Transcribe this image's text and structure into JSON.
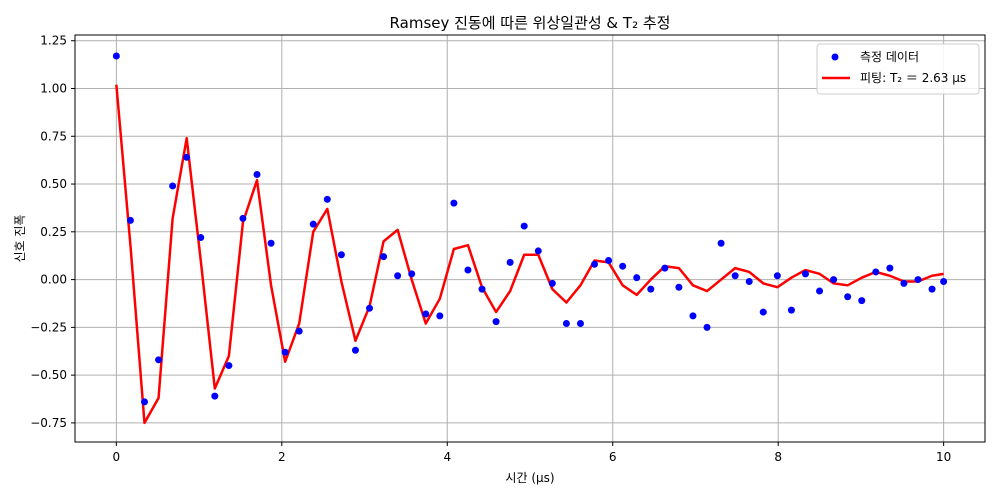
{
  "chart_data": {
    "type": "scatter",
    "title": "Ramsey 진동에 따른 위상일관성 & T₂ 추정",
    "xlabel": "시간 (μs)",
    "ylabel": "신호 진폭",
    "xlim": [
      -0.5,
      10.5
    ],
    "ylim": [
      -0.85,
      1.28
    ],
    "x_ticks": [
      0,
      2,
      4,
      6,
      8,
      10
    ],
    "x_tick_labels": [
      "0",
      "2",
      "4",
      "6",
      "8",
      "10"
    ],
    "y_ticks": [
      -0.75,
      -0.5,
      -0.25,
      0.0,
      0.25,
      0.5,
      0.75,
      1.0,
      1.25
    ],
    "y_tick_labels": [
      "−0.75",
      "−0.50",
      "−0.25",
      "0.00",
      "0.25",
      "0.50",
      "0.75",
      "1.00",
      "1.25"
    ],
    "grid": true,
    "legend_position": "top-right",
    "series": [
      {
        "name": "측정 데이터",
        "kind": "scatter",
        "color": "#0000ff",
        "x": [
          0.0,
          0.17,
          0.34,
          0.51,
          0.68,
          0.85,
          1.02,
          1.19,
          1.36,
          1.53,
          1.7,
          1.87,
          2.04,
          2.21,
          2.38,
          2.55,
          2.72,
          2.89,
          3.06,
          3.23,
          3.4,
          3.57,
          3.74,
          3.91,
          4.08,
          4.25,
          4.42,
          4.59,
          4.76,
          4.93,
          5.1,
          5.27,
          5.44,
          5.61,
          5.78,
          5.95,
          6.12,
          6.29,
          6.46,
          6.63,
          6.8,
          6.97,
          7.14,
          7.31,
          7.48,
          7.65,
          7.82,
          7.99,
          8.16,
          8.33,
          8.5,
          8.67,
          8.84,
          9.01,
          9.18,
          9.35,
          9.52,
          9.69,
          9.86,
          10.0
        ],
        "y": [
          1.17,
          0.31,
          -0.64,
          -0.42,
          0.49,
          0.64,
          0.22,
          -0.61,
          -0.45,
          0.32,
          0.55,
          0.19,
          -0.38,
          -0.27,
          0.29,
          0.42,
          0.13,
          -0.37,
          -0.15,
          0.12,
          0.02,
          0.03,
          -0.18,
          -0.19,
          0.4,
          0.05,
          -0.05,
          -0.22,
          0.09,
          0.28,
          0.15,
          -0.02,
          -0.23,
          -0.23,
          0.08,
          0.1,
          0.07,
          0.01,
          -0.05,
          0.06,
          -0.04,
          -0.19,
          -0.25,
          0.19,
          0.02,
          -0.01,
          -0.17,
          0.02,
          -0.16,
          0.03,
          -0.06,
          0.0,
          -0.09,
          -0.11,
          0.04,
          0.06,
          -0.02,
          0.0,
          -0.05,
          -0.01
        ]
      },
      {
        "name": "피팅: T₂ ＝ 2.63 μs",
        "kind": "line",
        "color": "#ff0000",
        "x": [
          0.0,
          0.17,
          0.34,
          0.51,
          0.68,
          0.85,
          1.02,
          1.19,
          1.36,
          1.53,
          1.7,
          1.87,
          2.04,
          2.21,
          2.38,
          2.55,
          2.72,
          2.89,
          3.06,
          3.23,
          3.4,
          3.57,
          3.74,
          3.91,
          4.08,
          4.25,
          4.42,
          4.59,
          4.76,
          4.93,
          5.1,
          5.27,
          5.44,
          5.61,
          5.78,
          5.95,
          6.12,
          6.29,
          6.46,
          6.63,
          6.8,
          6.97,
          7.14,
          7.31,
          7.48,
          7.65,
          7.82,
          7.99,
          8.16,
          8.33,
          8.5,
          8.67,
          8.84,
          9.01,
          9.18,
          9.35,
          9.52,
          9.69,
          9.86,
          10.0
        ],
        "y": [
          1.02,
          0.18,
          -0.75,
          -0.62,
          0.32,
          0.74,
          0.1,
          -0.57,
          -0.4,
          0.3,
          0.52,
          -0.03,
          -0.43,
          -0.23,
          0.25,
          0.37,
          -0.01,
          -0.32,
          -0.14,
          0.2,
          0.26,
          0.0,
          -0.23,
          -0.1,
          0.16,
          0.18,
          -0.04,
          -0.17,
          -0.06,
          0.13,
          0.13,
          -0.05,
          -0.12,
          -0.03,
          0.1,
          0.09,
          -0.03,
          -0.08,
          0.0,
          0.07,
          0.06,
          -0.03,
          -0.06,
          0.0,
          0.06,
          0.04,
          -0.02,
          -0.04,
          0.01,
          0.05,
          0.03,
          -0.02,
          -0.03,
          0.01,
          0.04,
          0.02,
          -0.01,
          -0.01,
          0.02,
          0.03
        ]
      }
    ]
  }
}
